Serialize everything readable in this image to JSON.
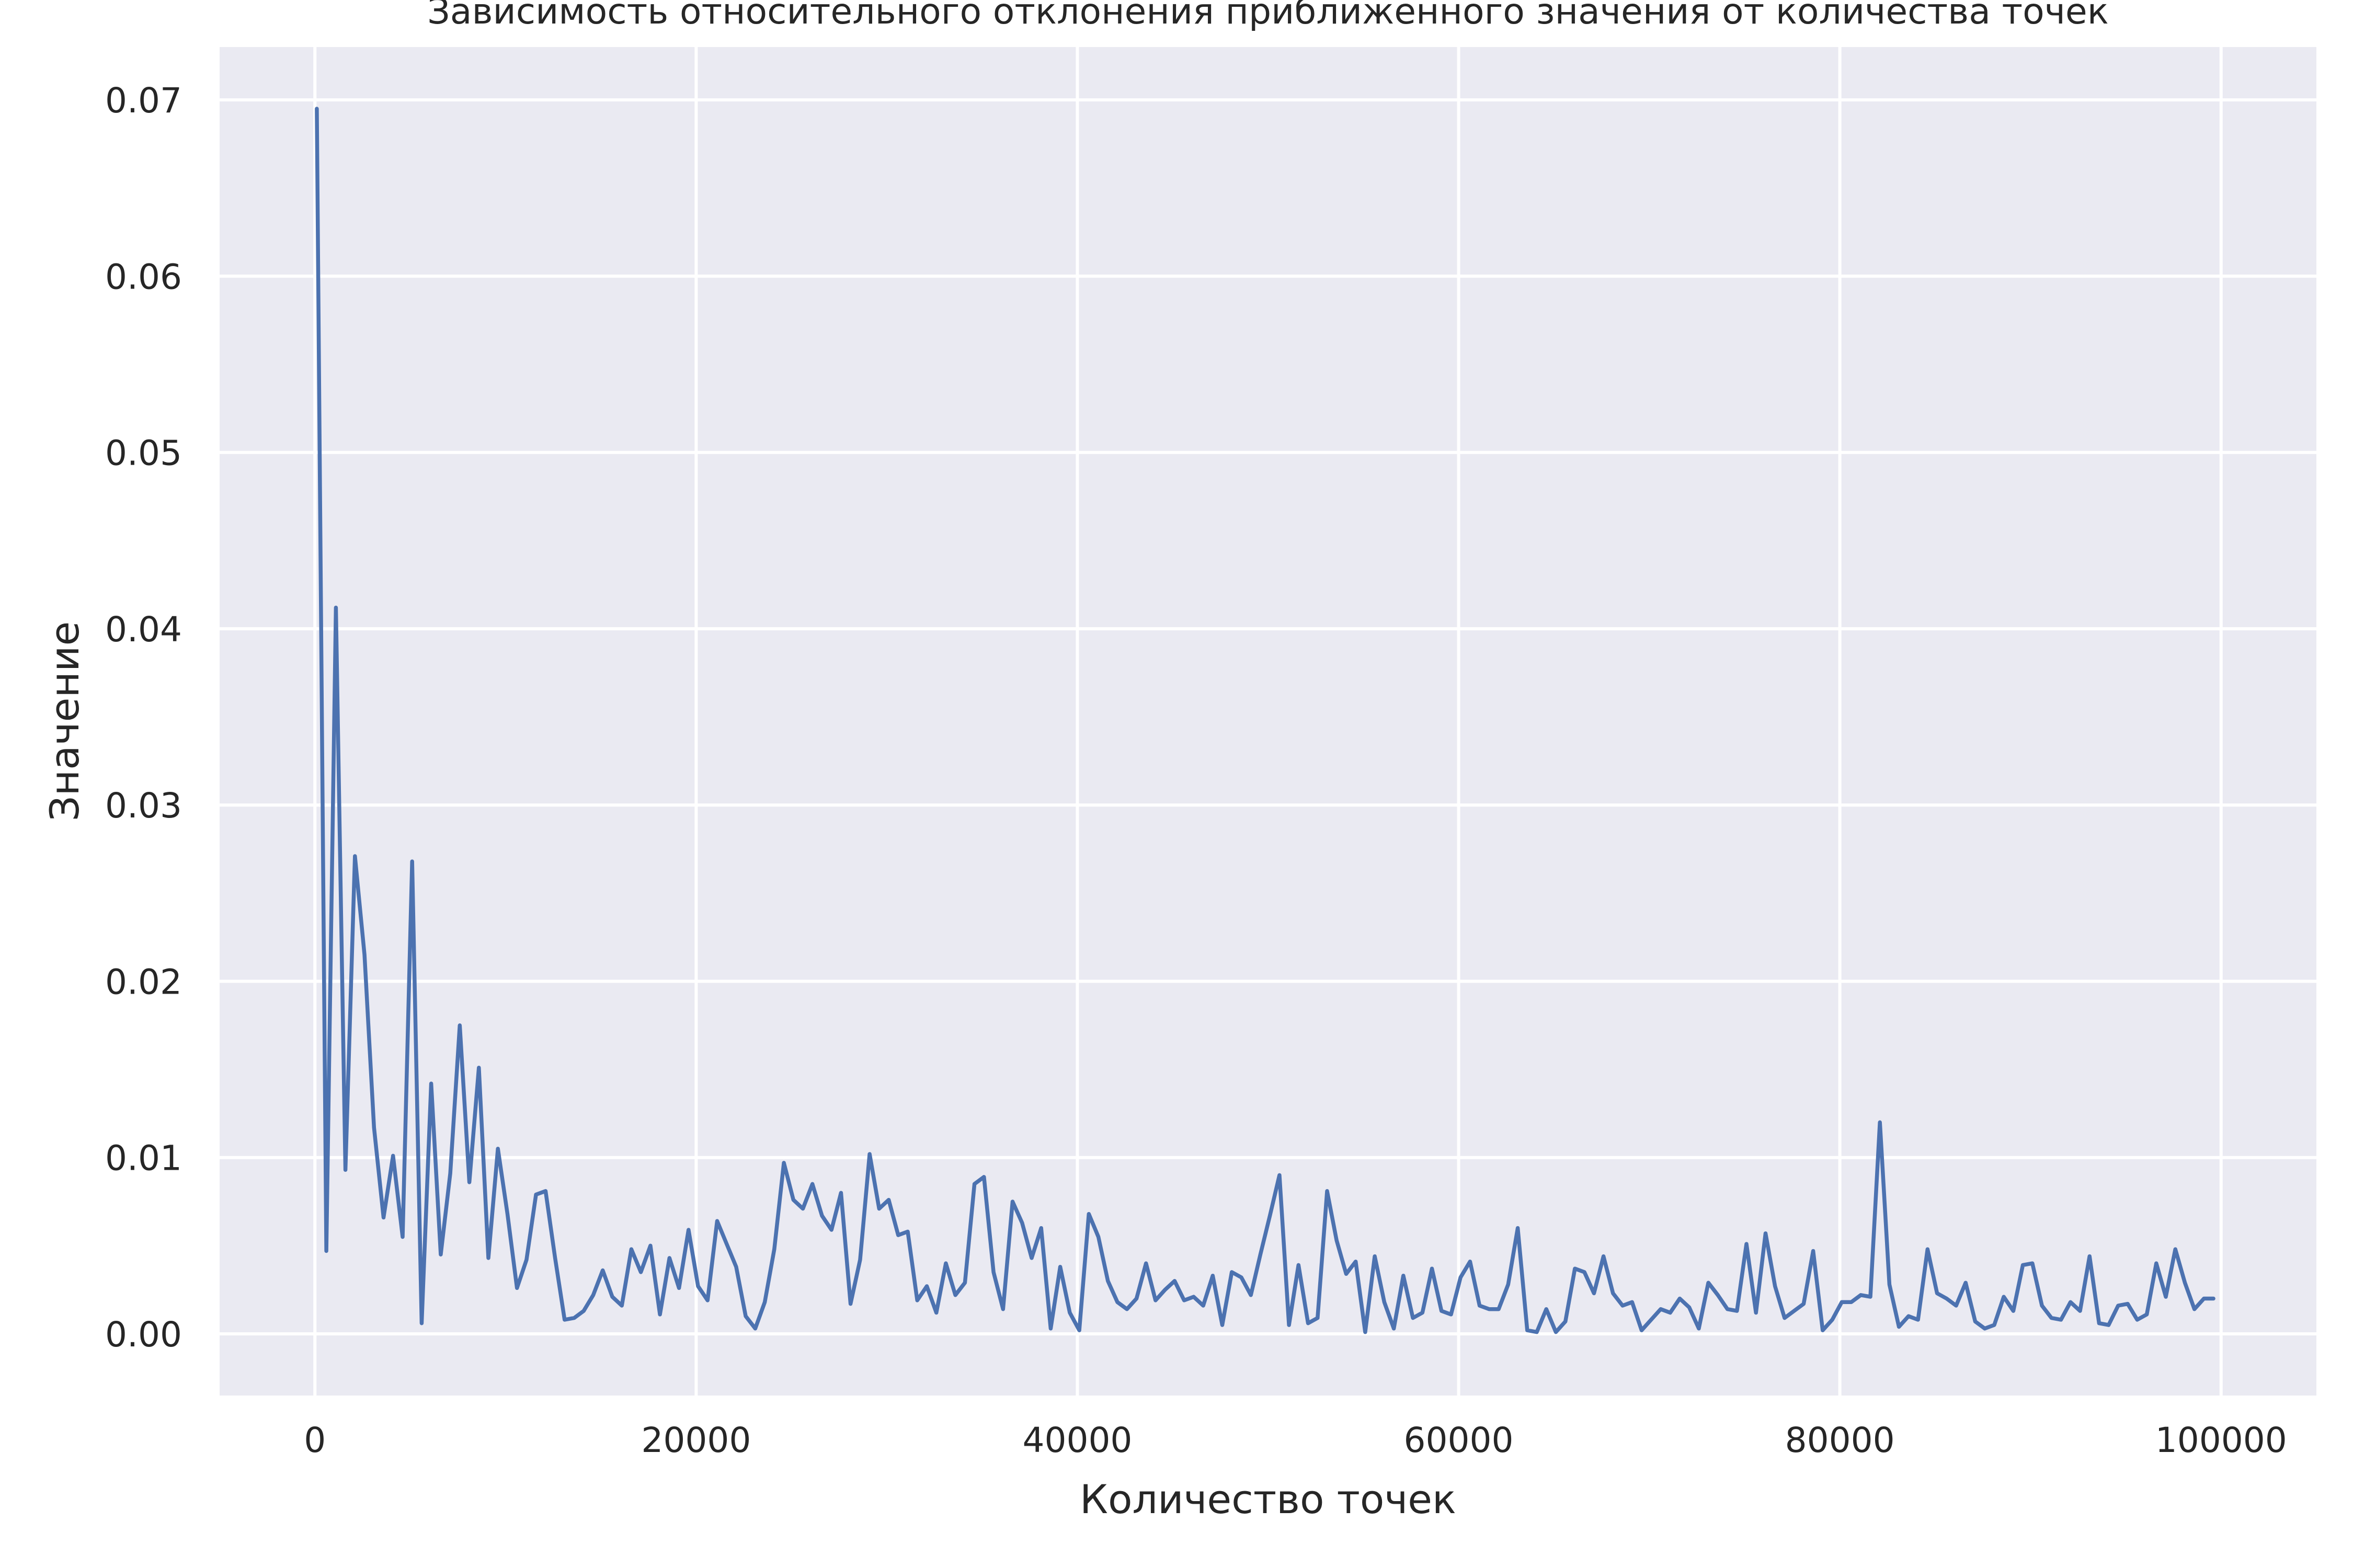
{
  "chart_data": {
    "type": "line",
    "title": "Зависимость относительного отклонения приближенного значения от количества точек",
    "xlabel": "Количество точек",
    "ylabel": "Значение",
    "xlim": [
      -5000,
      105000
    ],
    "ylim": [
      -0.0035,
      0.073
    ],
    "xticks": [
      0,
      20000,
      40000,
      60000,
      80000,
      100000
    ],
    "yticks": [
      0.0,
      0.01,
      0.02,
      0.03,
      0.04,
      0.05,
      0.06,
      0.07
    ],
    "xtick_labels": [
      "0",
      "20000",
      "40000",
      "60000",
      "80000",
      "100000"
    ],
    "ytick_labels": [
      "0.00",
      "0.01",
      "0.02",
      "0.03",
      "0.04",
      "0.05",
      "0.06",
      "0.07"
    ],
    "grid": true,
    "colors": {
      "background": "#eaeaf2",
      "grid": "#ffffff",
      "line": "#4c72b0"
    },
    "series": [
      {
        "x": [
          100,
          600,
          1100,
          1600,
          2100,
          2600,
          3100,
          3600,
          4100,
          4600,
          5100,
          5600,
          6100,
          6600,
          7100,
          7600,
          8100,
          8600,
          9100,
          9600,
          10100,
          10600,
          11100,
          11600,
          12100,
          12600,
          13100,
          13600,
          14100,
          14600,
          15100,
          15600,
          16100,
          16600,
          17100,
          17600,
          18100,
          18600,
          19100,
          19600,
          20100,
          20600,
          21100,
          21600,
          22100,
          22600,
          23100,
          23600,
          24100,
          24600,
          25100,
          25600,
          26100,
          26600,
          27100,
          27600,
          28100,
          28600,
          29100,
          29600,
          30100,
          30600,
          31100,
          31600,
          32100,
          32600,
          33100,
          33600,
          34100,
          34600,
          35100,
          35600,
          36100,
          36600,
          37100,
          37600,
          38100,
          38600,
          39100,
          39600,
          40100,
          40600,
          41100,
          41600,
          42100,
          42600,
          43100,
          43600,
          44100,
          44600,
          45100,
          45600,
          46100,
          46600,
          47100,
          47600,
          48100,
          48600,
          49100,
          49600,
          50100,
          50600,
          51100,
          51600,
          52100,
          52600,
          53100,
          53600,
          54100,
          54600,
          55100,
          55600,
          56100,
          56600,
          57100,
          57600,
          58100,
          58600,
          59100,
          59600,
          60100,
          60600,
          61100,
          61600,
          62100,
          62600,
          63100,
          63600,
          64100,
          64600,
          65100,
          65600,
          66100,
          66600,
          67100,
          67600,
          68100,
          68600,
          69100,
          69600,
          70100,
          70600,
          71100,
          71600,
          72100,
          72600,
          73100,
          73600,
          74100,
          74600,
          75100,
          75600,
          76100,
          76600,
          77100,
          77600,
          78100,
          78600,
          79100,
          79600,
          80100,
          80600,
          81100,
          81600,
          82100,
          82600,
          83100,
          83600,
          84100,
          84600,
          85100,
          85600,
          86100,
          86600,
          87100,
          87600,
          88100,
          88600,
          89100,
          89600,
          90100,
          90600,
          91100,
          91600,
          92100,
          92600,
          93100,
          93600,
          94100,
          94600,
          95100,
          95600,
          96100,
          96600,
          97100,
          97600,
          98100,
          98600,
          99100,
          99600
        ],
        "y": [
          0.0695,
          0.0047,
          0.0412,
          0.0093,
          0.0271,
          0.0215,
          0.0117,
          0.0066,
          0.0101,
          0.0055,
          0.0268,
          0.0006,
          0.0142,
          0.0045,
          0.0091,
          0.0175,
          0.0086,
          0.0151,
          0.0043,
          0.0105,
          0.0068,
          0.0026,
          0.0042,
          0.0079,
          0.0081,
          0.0043,
          0.0008,
          0.0009,
          0.0013,
          0.0022,
          0.0036,
          0.0021,
          0.0016,
          0.0048,
          0.0035,
          0.005,
          0.0011,
          0.0043,
          0.0026,
          0.0059,
          0.0027,
          0.0019,
          0.0064,
          0.0051,
          0.0038,
          0.001,
          0.0003,
          0.0018,
          0.0048,
          0.0097,
          0.0076,
          0.0071,
          0.0085,
          0.0067,
          0.0059,
          0.008,
          0.0017,
          0.0042,
          0.0102,
          0.0071,
          0.0076,
          0.0056,
          0.0058,
          0.0019,
          0.0027,
          0.0012,
          0.004,
          0.0022,
          0.0029,
          0.0085,
          0.0089,
          0.0035,
          0.0014,
          0.0075,
          0.0063,
          0.0043,
          0.006,
          0.0003,
          0.0038,
          0.0012,
          0.0002,
          0.0068,
          0.0055,
          0.003,
          0.0018,
          0.0014,
          0.002,
          0.004,
          0.0019,
          0.0025,
          0.003,
          0.0019,
          0.0021,
          0.0016,
          0.0033,
          0.0005,
          0.0035,
          0.0032,
          0.0022,
          0.0045,
          0.0067,
          0.009,
          0.0005,
          0.0039,
          0.0006,
          0.0009,
          0.0081,
          0.0053,
          0.0034,
          0.0041,
          0.0001,
          0.0044,
          0.0018,
          0.0003,
          0.0033,
          0.0009,
          0.0012,
          0.0037,
          0.0013,
          0.0011,
          0.0032,
          0.0041,
          0.0016,
          0.0014,
          0.0014,
          0.0028,
          0.006,
          0.0002,
          0.0001,
          0.0014,
          0.0001,
          0.0007,
          0.0037,
          0.0035,
          0.0023,
          0.0044,
          0.0023,
          0.0016,
          0.0018,
          0.0002,
          0.0008,
          0.0014,
          0.0012,
          0.002,
          0.0015,
          0.0003,
          0.0029,
          0.0022,
          0.0014,
          0.0013,
          0.0051,
          0.0012,
          0.0057,
          0.0027,
          0.0009,
          0.0013,
          0.0017,
          0.0047,
          0.0002,
          0.0008,
          0.0018,
          0.0018,
          0.0022,
          0.0021,
          0.012,
          0.0028,
          0.0004,
          0.001,
          0.0008,
          0.0048,
          0.0023,
          0.002,
          0.0016,
          0.0029,
          0.0007,
          0.0003,
          0.0005,
          0.0021,
          0.0013,
          0.0039,
          0.004,
          0.0016,
          0.0009,
          0.0008,
          0.0018,
          0.0013,
          0.0044,
          0.0006,
          0.0005,
          0.0016,
          0.0017,
          0.0008,
          0.0011,
          0.004,
          0.0021,
          0.0048,
          0.0029,
          0.0014,
          0.002,
          0.002
        ]
      }
    ]
  }
}
